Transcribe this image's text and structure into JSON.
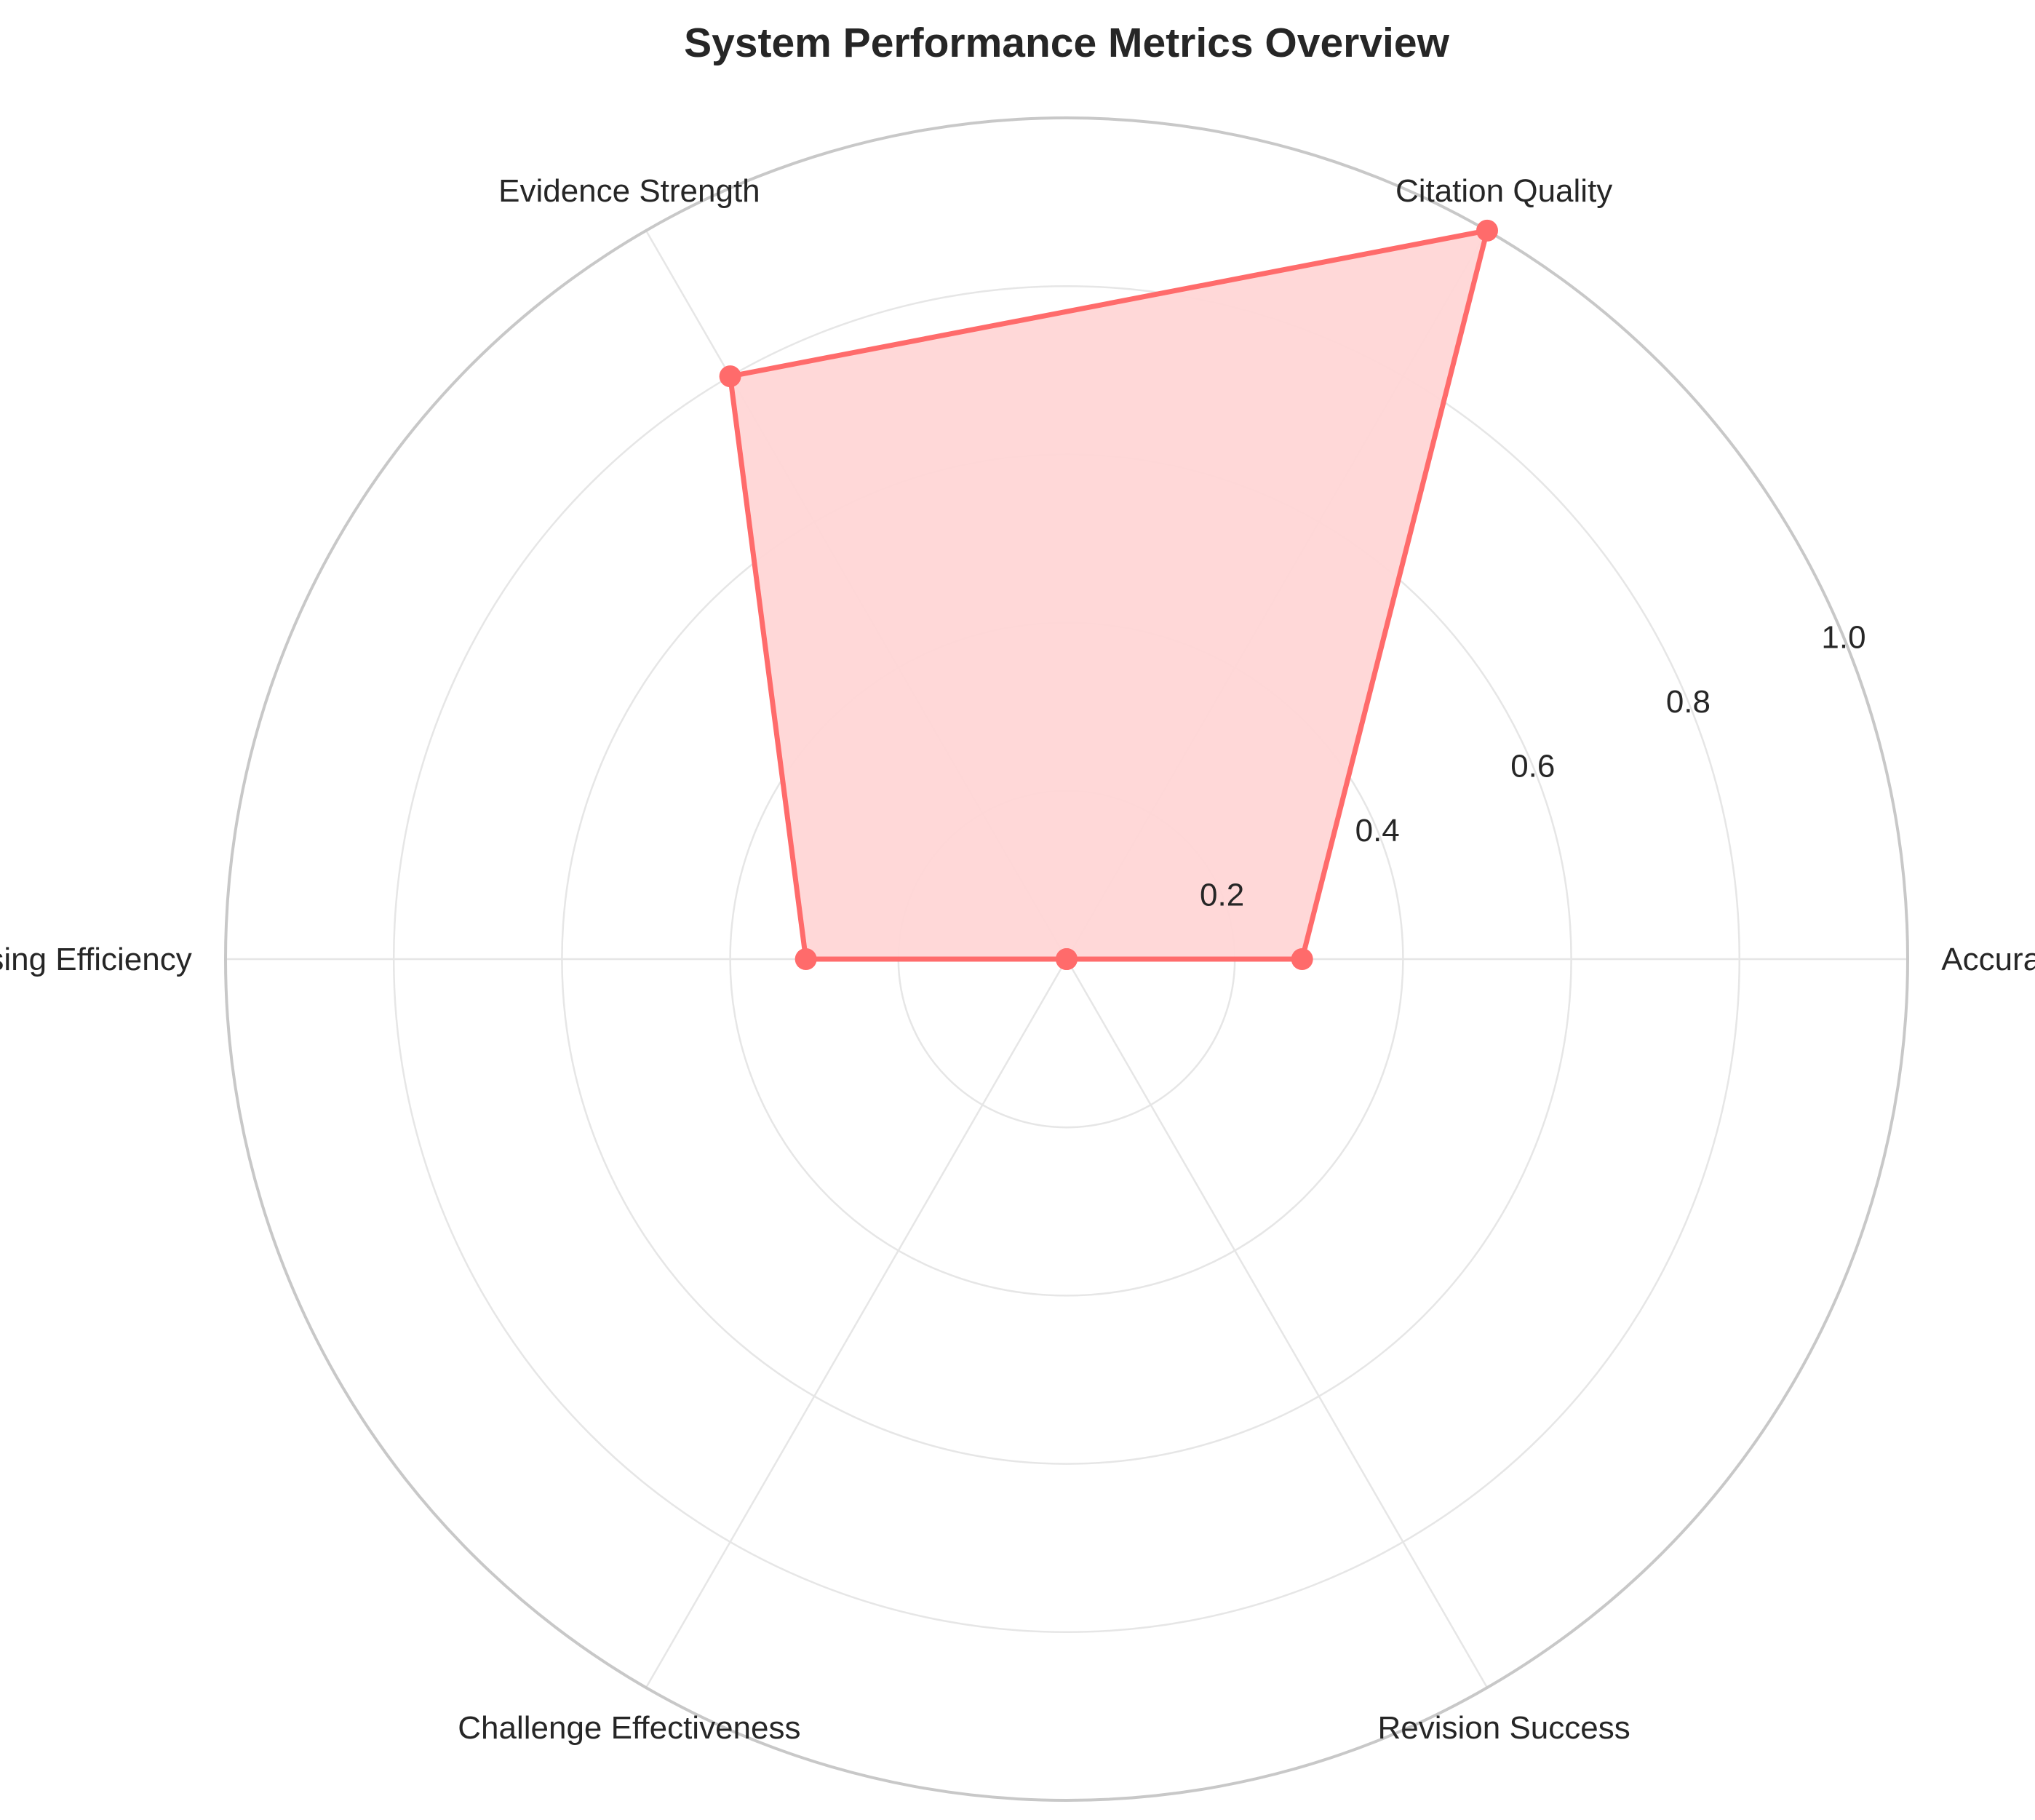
{
  "chart_data": {
    "type": "radar",
    "title": "System Performance Metrics Overview",
    "categories": [
      "Accuracy",
      "Citation Quality",
      "Evidence Strength",
      "Processing Efficiency",
      "Challenge Effectiveness",
      "Revision Success"
    ],
    "series": [
      {
        "values": [
          0.28,
          1.0,
          0.8,
          0.31,
          0.0,
          0.0
        ],
        "color": "#ff6b6b"
      }
    ],
    "rlim": [
      0,
      1.0
    ],
    "r_ticks": [
      "0.2",
      "0.4",
      "0.6",
      "0.8",
      "1.0"
    ],
    "grid": true,
    "colors": {
      "line": "#ff6b6b",
      "fill": "#ffd6d6",
      "grid": "#e6e6e6",
      "outer_ring": "#c8c8c8"
    }
  }
}
